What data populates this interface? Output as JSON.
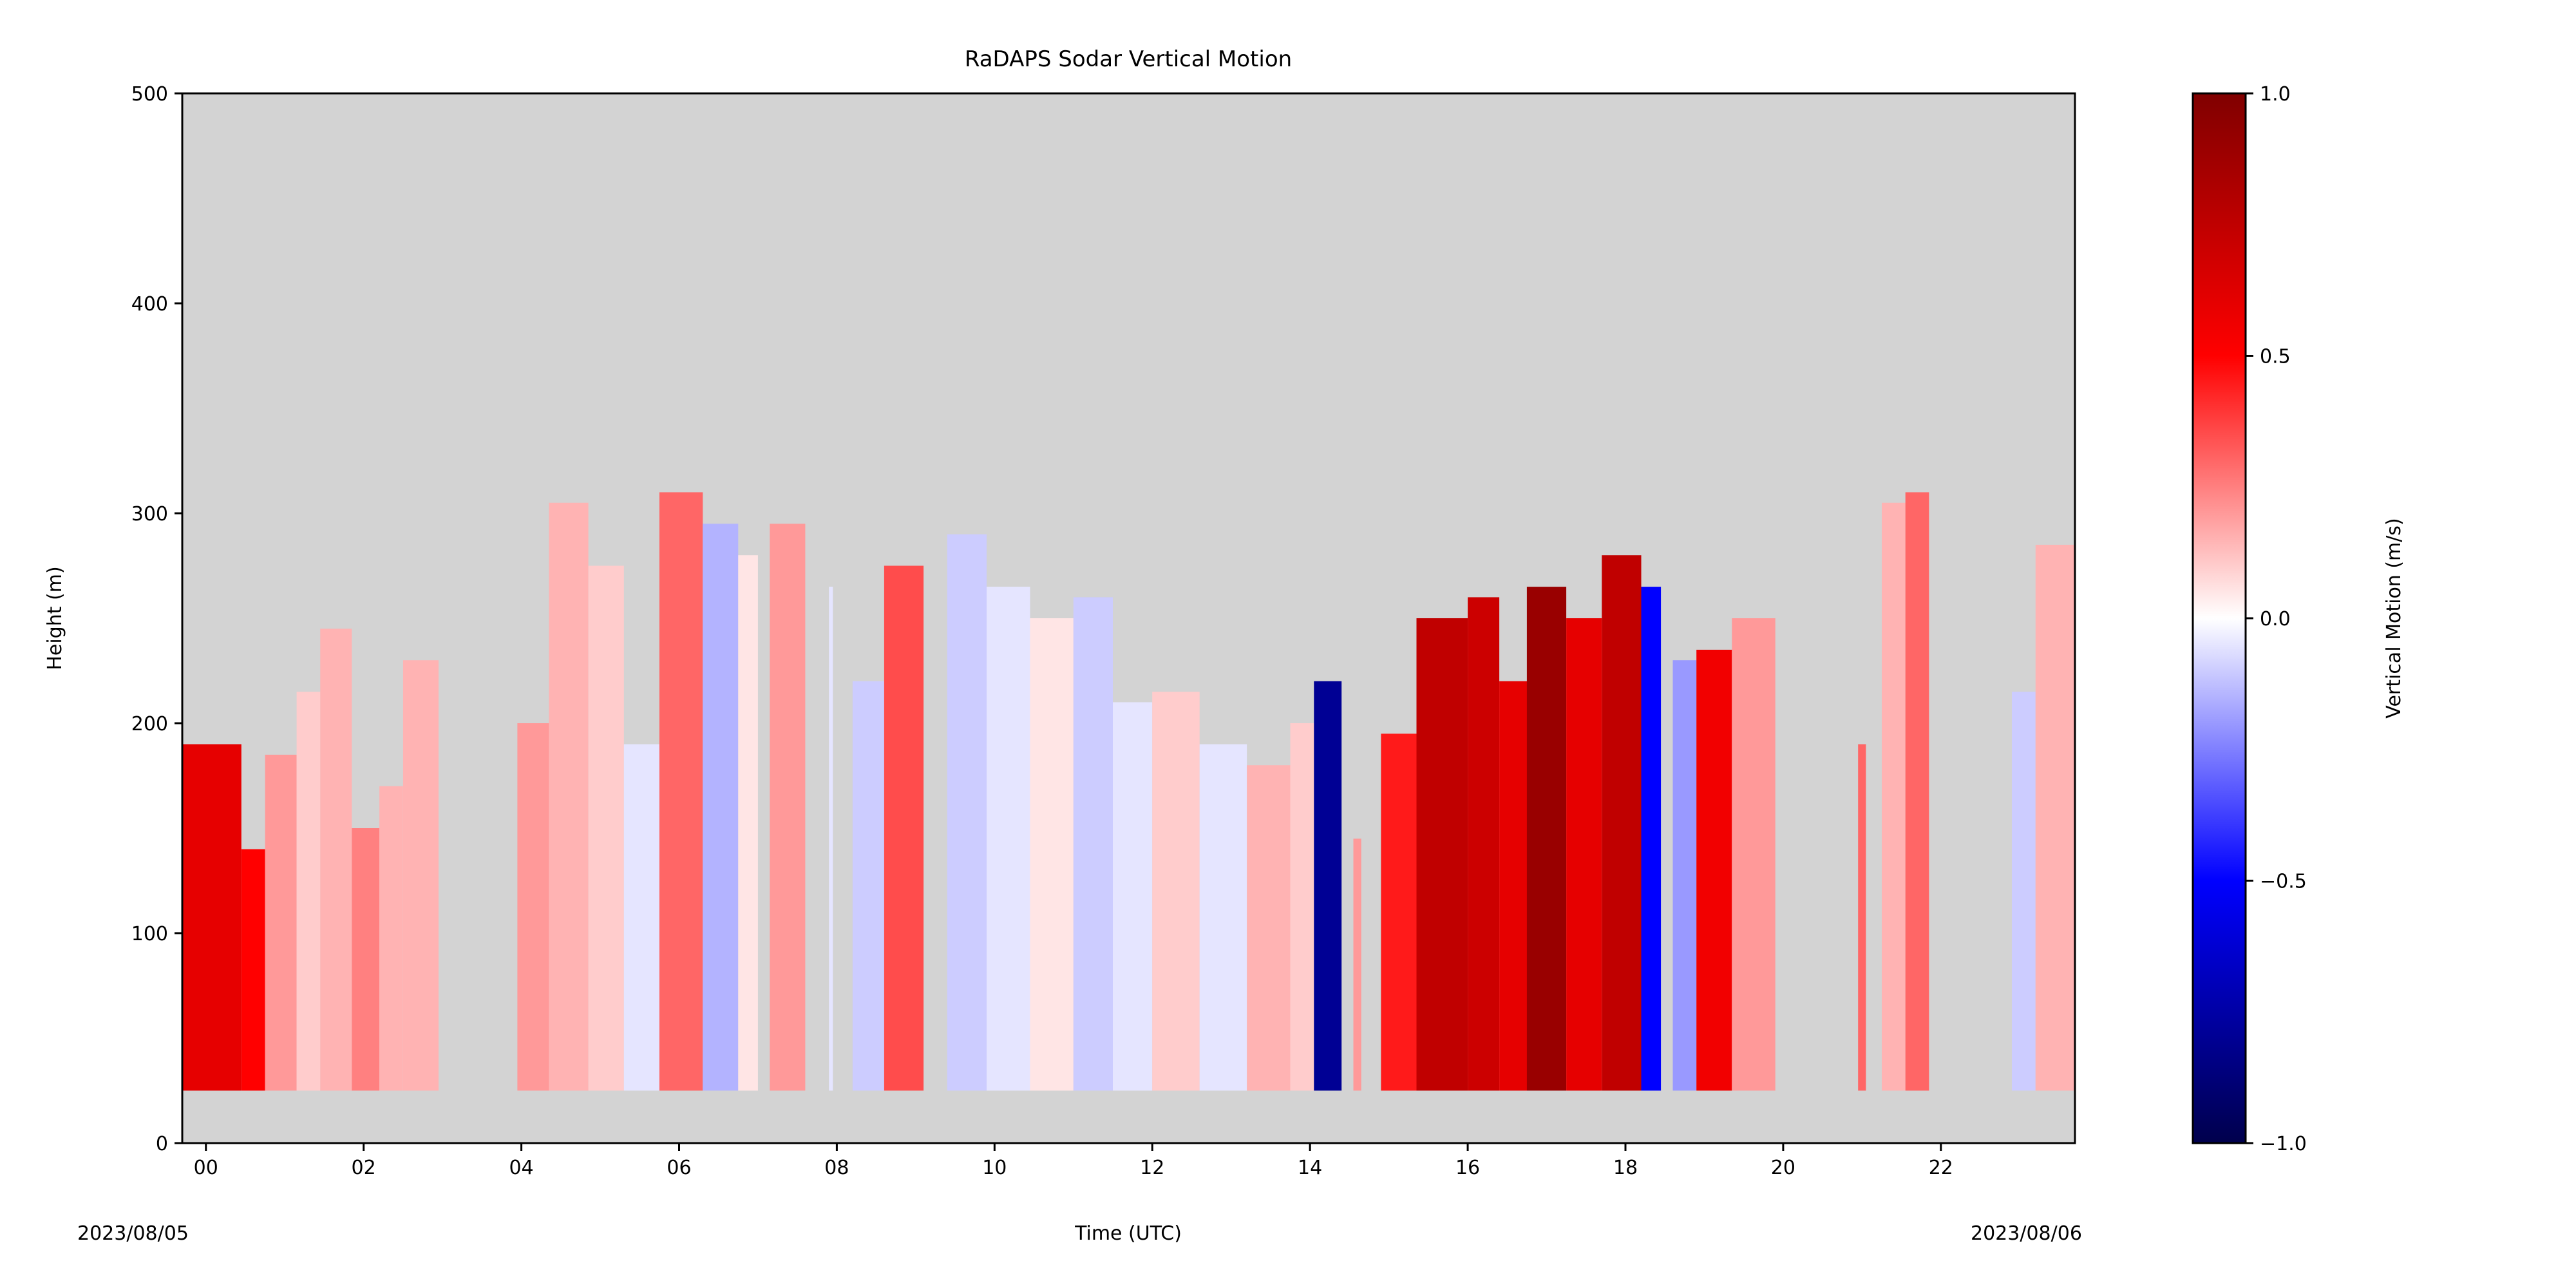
{
  "chart_data": {
    "type": "heatmap",
    "title": "RaDAPS Sodar Vertical Motion",
    "xlabel": "Time (UTC)",
    "ylabel": "Height (m)",
    "x_start_label": "2023/08/05",
    "x_end_label": "2023/08/06",
    "xlim_hours": [
      -0.3,
      23.7
    ],
    "ylim": [
      0,
      500
    ],
    "x_ticks": [
      {
        "value": 0,
        "label": "00"
      },
      {
        "value": 2,
        "label": "02"
      },
      {
        "value": 4,
        "label": "04"
      },
      {
        "value": 6,
        "label": "06"
      },
      {
        "value": 8,
        "label": "08"
      },
      {
        "value": 10,
        "label": "10"
      },
      {
        "value": 12,
        "label": "12"
      },
      {
        "value": 14,
        "label": "14"
      },
      {
        "value": 16,
        "label": "16"
      },
      {
        "value": 18,
        "label": "18"
      },
      {
        "value": 20,
        "label": "20"
      },
      {
        "value": 22,
        "label": "22"
      }
    ],
    "y_ticks": [
      {
        "value": 0,
        "label": "0"
      },
      {
        "value": 100,
        "label": "100"
      },
      {
        "value": 200,
        "label": "200"
      },
      {
        "value": 300,
        "label": "300"
      },
      {
        "value": 400,
        "label": "400"
      },
      {
        "value": 500,
        "label": "500"
      }
    ],
    "missing_color": "#d3d3d3",
    "colorbar": {
      "label": "Vertical Motion (m/s)",
      "range": [
        -1.0,
        1.0
      ],
      "cmap": "seismic",
      "stops": [
        "#00004c",
        "#0000ff",
        "#ffffff",
        "#ff0000",
        "#800000"
      ],
      "ticks": [
        {
          "value": 1.0,
          "label": "1.0"
        },
        {
          "value": 0.5,
          "label": "0.5"
        },
        {
          "value": 0.0,
          "label": "0.0"
        },
        {
          "value": -0.5,
          "label": "−0.5"
        },
        {
          "value": -1.0,
          "label": "−1.0"
        }
      ]
    },
    "data_floor_m": 25,
    "columns": [
      {
        "t0": -0.3,
        "t1": 0.45,
        "top": 190,
        "w": 0.6
      },
      {
        "t0": 0.45,
        "t1": 0.75,
        "top": 140,
        "w": 0.5
      },
      {
        "t0": 0.75,
        "t1": 1.15,
        "top": 185,
        "w": 0.2
      },
      {
        "t0": 1.15,
        "t1": 1.45,
        "top": 215,
        "w": 0.1
      },
      {
        "t0": 1.45,
        "t1": 1.85,
        "top": 245,
        "w": 0.15
      },
      {
        "t0": 1.85,
        "t1": 2.2,
        "top": 150,
        "w": 0.25
      },
      {
        "t0": 2.2,
        "t1": 2.5,
        "top": 170,
        "w": 0.15
      },
      {
        "t0": 2.5,
        "t1": 2.95,
        "top": 230,
        "w": 0.15
      },
      {
        "t0": 3.95,
        "t1": 4.35,
        "top": 200,
        "w": 0.2
      },
      {
        "t0": 4.35,
        "t1": 4.85,
        "top": 305,
        "w": 0.15
      },
      {
        "t0": 4.85,
        "t1": 5.3,
        "top": 275,
        "w": 0.1
      },
      {
        "t0": 5.3,
        "t1": 5.75,
        "top": 190,
        "w": -0.05
      },
      {
        "t0": 5.75,
        "t1": 6.3,
        "top": 310,
        "w": 0.3
      },
      {
        "t0": 6.3,
        "t1": 6.75,
        "top": 295,
        "w": -0.15
      },
      {
        "t0": 6.75,
        "t1": 7.0,
        "top": 280,
        "w": 0.05
      },
      {
        "t0": 7.15,
        "t1": 7.6,
        "top": 295,
        "w": 0.2
      },
      {
        "t0": 7.9,
        "t1": 7.95,
        "top": 265,
        "w": -0.05
      },
      {
        "t0": 8.2,
        "t1": 8.6,
        "top": 220,
        "w": -0.1
      },
      {
        "t0": 8.6,
        "t1": 9.1,
        "top": 275,
        "w": 0.35
      },
      {
        "t0": 9.4,
        "t1": 9.9,
        "top": 290,
        "w": -0.1
      },
      {
        "t0": 9.9,
        "t1": 10.45,
        "top": 265,
        "w": -0.05
      },
      {
        "t0": 10.45,
        "t1": 11.0,
        "top": 250,
        "w": 0.05
      },
      {
        "t0": 11.0,
        "t1": 11.5,
        "top": 260,
        "w": -0.1
      },
      {
        "t0": 11.5,
        "t1": 12.0,
        "top": 210,
        "w": -0.05
      },
      {
        "t0": 12.0,
        "t1": 12.6,
        "top": 215,
        "w": 0.1
      },
      {
        "t0": 12.6,
        "t1": 13.2,
        "top": 190,
        "w": -0.05
      },
      {
        "t0": 13.2,
        "t1": 13.75,
        "top": 180,
        "w": 0.15
      },
      {
        "t0": 13.75,
        "t1": 14.05,
        "top": 200,
        "w": 0.1
      },
      {
        "t0": 14.05,
        "t1": 14.4,
        "top": 220,
        "w": -0.8
      },
      {
        "t0": 14.55,
        "t1": 14.65,
        "top": 145,
        "w": 0.2
      },
      {
        "t0": 14.9,
        "t1": 15.35,
        "top": 195,
        "w": 0.45
      },
      {
        "t0": 15.35,
        "t1": 16.0,
        "top": 250,
        "w": 0.75
      },
      {
        "t0": 16.0,
        "t1": 16.4,
        "top": 260,
        "w": 0.7
      },
      {
        "t0": 16.4,
        "t1": 16.75,
        "top": 220,
        "w": 0.6
      },
      {
        "t0": 16.75,
        "t1": 17.25,
        "top": 265,
        "w": 0.9
      },
      {
        "t0": 17.25,
        "t1": 17.7,
        "top": 250,
        "w": 0.6
      },
      {
        "t0": 17.7,
        "t1": 18.2,
        "top": 280,
        "w": 0.75
      },
      {
        "t0": 18.2,
        "t1": 18.45,
        "top": 265,
        "w": -0.5
      },
      {
        "t0": 18.6,
        "t1": 18.9,
        "top": 230,
        "w": -0.2
      },
      {
        "t0": 18.9,
        "t1": 19.35,
        "top": 235,
        "w": 0.55
      },
      {
        "t0": 19.35,
        "t1": 19.9,
        "top": 250,
        "w": 0.2
      },
      {
        "t0": 20.95,
        "t1": 21.05,
        "top": 190,
        "w": 0.3
      },
      {
        "t0": 21.25,
        "t1": 21.55,
        "top": 305,
        "w": 0.15
      },
      {
        "t0": 21.55,
        "t1": 21.85,
        "top": 310,
        "w": 0.3
      },
      {
        "t0": 22.9,
        "t1": 23.2,
        "top": 215,
        "w": -0.1
      },
      {
        "t0": 23.2,
        "t1": 23.7,
        "top": 285,
        "w": 0.15
      }
    ]
  }
}
